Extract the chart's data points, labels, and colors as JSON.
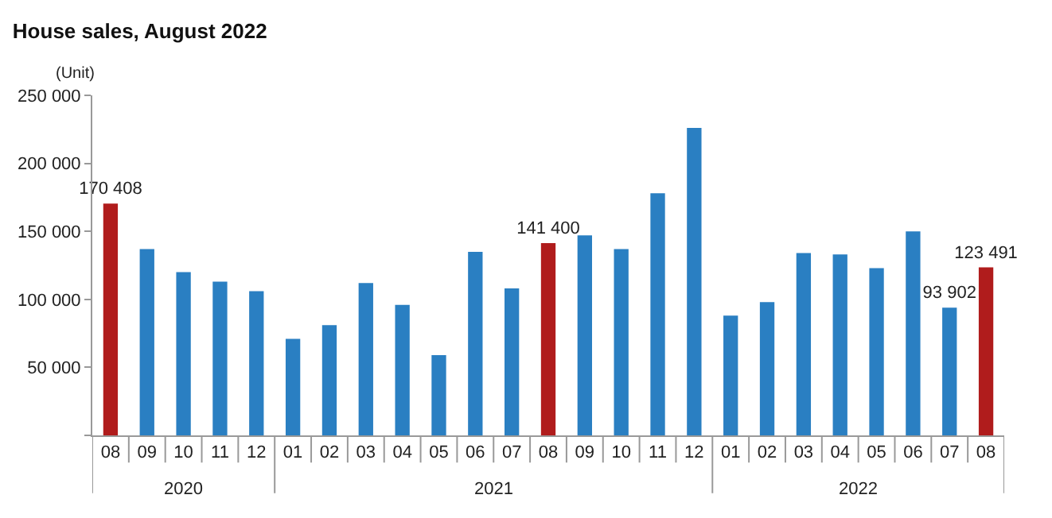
{
  "chart_data": {
    "type": "bar",
    "title": "House sales, August 2022",
    "ylabel": "(Unit)",
    "categories": [
      "08",
      "09",
      "10",
      "11",
      "12",
      "01",
      "02",
      "03",
      "04",
      "05",
      "06",
      "07",
      "08",
      "09",
      "10",
      "11",
      "12",
      "01",
      "02",
      "03",
      "04",
      "05",
      "06",
      "07",
      "08"
    ],
    "annotations": [
      "2020",
      "2021",
      "2022"
    ],
    "values": [
      170408,
      137000,
      120000,
      113000,
      106000,
      71000,
      81000,
      112000,
      96000,
      59000,
      135000,
      108000,
      141400,
      147000,
      137000,
      178000,
      226000,
      88000,
      98000,
      134000,
      133000,
      123000,
      150000,
      93902,
      123491
    ],
    "colors": [
      "#b01c1c",
      "#2a7fc2",
      "#2a7fc2",
      "#2a7fc2",
      "#2a7fc2",
      "#2a7fc2",
      "#2a7fc2",
      "#2a7fc2",
      "#2a7fc2",
      "#2a7fc2",
      "#2a7fc2",
      "#2a7fc2",
      "#b01c1c",
      "#2a7fc2",
      "#2a7fc2",
      "#2a7fc2",
      "#2a7fc2",
      "#2a7fc2",
      "#2a7fc2",
      "#2a7fc2",
      "#2a7fc2",
      "#2a7fc2",
      "#2a7fc2",
      "#2a7fc2",
      "#b01c1c"
    ],
    "value_labels": [
      "170 408",
      null,
      null,
      null,
      null,
      null,
      null,
      null,
      null,
      null,
      null,
      null,
      "141 400",
      null,
      null,
      null,
      null,
      null,
      null,
      null,
      null,
      null,
      null,
      "93 902",
      "123 491"
    ],
    "ylim": [
      0,
      250000
    ],
    "yticks": [
      {
        "value": 0,
        "label": null
      },
      {
        "value": 50000,
        "label": "50 000"
      },
      {
        "value": 100000,
        "label": "100 000"
      },
      {
        "value": 150000,
        "label": "150 000"
      },
      {
        "value": 200000,
        "label": "200 000"
      },
      {
        "value": 250000,
        "label": "250 000"
      }
    ]
  }
}
